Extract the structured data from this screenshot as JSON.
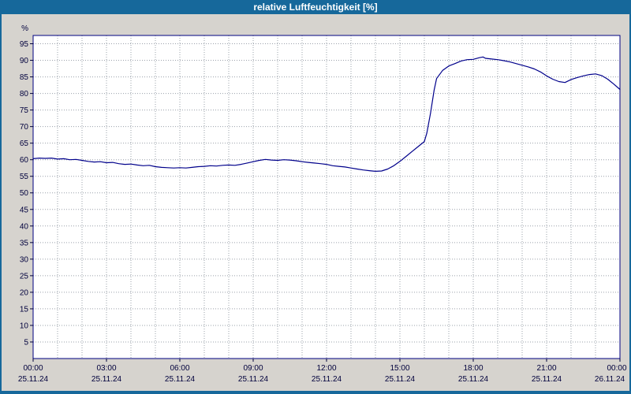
{
  "window": {
    "title": "relative Luftfeuchtigkeit [%]"
  },
  "colors": {
    "titlebar": "#16689b",
    "titlebar_text": "#ffffff",
    "window_bg": "#d6d3ce",
    "plot_bg": "#ffffff",
    "plot_border": "#000080",
    "grid": "#9aa0aa",
    "axis_text": "#00003c",
    "line": "#00008b"
  },
  "chart_data": {
    "type": "line",
    "title": "relative Luftfeuchtigkeit [%]",
    "ylabel": "%",
    "xlabel": "",
    "ylim": [
      0,
      97.5
    ],
    "xlim_hours": [
      0,
      24
    ],
    "grid": {
      "x_step_hours": 1,
      "y_step": 5,
      "style": "dotted"
    },
    "legend": "none",
    "y_ticks": [
      95,
      90,
      85,
      80,
      75,
      70,
      65,
      60,
      55,
      50,
      45,
      40,
      35,
      30,
      25,
      20,
      15,
      10,
      5
    ],
    "x_ticks": [
      {
        "hour": 0,
        "time": "00:00",
        "date": "25.11.24"
      },
      {
        "hour": 3,
        "time": "03:00",
        "date": "25.11.24"
      },
      {
        "hour": 6,
        "time": "06:00",
        "date": "25.11.24"
      },
      {
        "hour": 9,
        "time": "09:00",
        "date": "25.11.24"
      },
      {
        "hour": 12,
        "time": "12:00",
        "date": "25.11.24"
      },
      {
        "hour": 15,
        "time": "15:00",
        "date": "25.11.24"
      },
      {
        "hour": 18,
        "time": "18:00",
        "date": "25.11.24"
      },
      {
        "hour": 21,
        "time": "21:00",
        "date": "25.11.24"
      },
      {
        "hour": 24,
        "time": "00:00",
        "date": "26.11.24"
      }
    ],
    "series": [
      {
        "name": "relative-luftfeuchtigkeit",
        "color": "#00008b",
        "points_hour_value": [
          [
            0,
            60.3
          ],
          [
            0.25,
            60.5
          ],
          [
            0.5,
            60.4
          ],
          [
            0.75,
            60.5
          ],
          [
            1,
            60.2
          ],
          [
            1.25,
            60.3
          ],
          [
            1.5,
            60.0
          ],
          [
            1.75,
            60.1
          ],
          [
            2,
            59.8
          ],
          [
            2.25,
            59.5
          ],
          [
            2.5,
            59.3
          ],
          [
            2.75,
            59.4
          ],
          [
            3,
            59.1
          ],
          [
            3.25,
            59.2
          ],
          [
            3.5,
            58.8
          ],
          [
            3.75,
            58.6
          ],
          [
            4,
            58.7
          ],
          [
            4.25,
            58.4
          ],
          [
            4.5,
            58.2
          ],
          [
            4.75,
            58.3
          ],
          [
            5,
            57.9
          ],
          [
            5.25,
            57.7
          ],
          [
            5.5,
            57.6
          ],
          [
            5.75,
            57.5
          ],
          [
            6,
            57.6
          ],
          [
            6.25,
            57.5
          ],
          [
            6.5,
            57.7
          ],
          [
            6.75,
            57.9
          ],
          [
            7,
            58.0
          ],
          [
            7.25,
            58.2
          ],
          [
            7.5,
            58.1
          ],
          [
            7.75,
            58.3
          ],
          [
            8,
            58.4
          ],
          [
            8.25,
            58.3
          ],
          [
            8.5,
            58.6
          ],
          [
            8.75,
            59.0
          ],
          [
            9,
            59.4
          ],
          [
            9.25,
            59.8
          ],
          [
            9.5,
            60.1
          ],
          [
            9.75,
            59.9
          ],
          [
            10,
            59.8
          ],
          [
            10.25,
            60.0
          ],
          [
            10.5,
            59.9
          ],
          [
            10.75,
            59.7
          ],
          [
            11,
            59.4
          ],
          [
            11.25,
            59.2
          ],
          [
            11.5,
            59.0
          ],
          [
            11.75,
            58.8
          ],
          [
            12,
            58.6
          ],
          [
            12.25,
            58.2
          ],
          [
            12.5,
            58.0
          ],
          [
            12.75,
            57.8
          ],
          [
            13,
            57.5
          ],
          [
            13.25,
            57.2
          ],
          [
            13.5,
            56.9
          ],
          [
            13.75,
            56.7
          ],
          [
            14,
            56.5
          ],
          [
            14.25,
            56.6
          ],
          [
            14.5,
            57.2
          ],
          [
            14.75,
            58.2
          ],
          [
            15,
            59.5
          ],
          [
            15.25,
            61.0
          ],
          [
            15.5,
            62.5
          ],
          [
            15.75,
            64.0
          ],
          [
            16,
            65.5
          ],
          [
            16.1,
            68.0
          ],
          [
            16.25,
            74.0
          ],
          [
            16.4,
            81.0
          ],
          [
            16.5,
            84.5
          ],
          [
            16.75,
            87.0
          ],
          [
            17,
            88.3
          ],
          [
            17.25,
            89.0
          ],
          [
            17.5,
            89.8
          ],
          [
            17.75,
            90.2
          ],
          [
            18,
            90.3
          ],
          [
            18.25,
            90.8
          ],
          [
            18.4,
            91.0
          ],
          [
            18.5,
            90.6
          ],
          [
            18.75,
            90.4
          ],
          [
            19,
            90.2
          ],
          [
            19.25,
            89.9
          ],
          [
            19.5,
            89.5
          ],
          [
            19.75,
            89.0
          ],
          [
            20,
            88.5
          ],
          [
            20.25,
            88.0
          ],
          [
            20.5,
            87.4
          ],
          [
            20.75,
            86.5
          ],
          [
            21,
            85.3
          ],
          [
            21.25,
            84.3
          ],
          [
            21.5,
            83.6
          ],
          [
            21.75,
            83.3
          ],
          [
            22,
            84.2
          ],
          [
            22.25,
            84.8
          ],
          [
            22.5,
            85.3
          ],
          [
            22.75,
            85.7
          ],
          [
            23,
            85.9
          ],
          [
            23.25,
            85.4
          ],
          [
            23.5,
            84.3
          ],
          [
            23.75,
            82.8
          ],
          [
            24,
            81.2
          ]
        ]
      }
    ]
  }
}
